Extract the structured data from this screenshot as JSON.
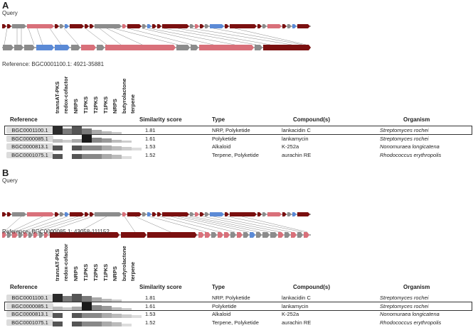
{
  "colors": {
    "dark_red": "#7b1010",
    "salmon": "#d9707a",
    "grey": "#8c8c8c",
    "blue": "#5b8ad6",
    "text": "#222222"
  },
  "panel_a": {
    "letter": "A",
    "query_label": "Query",
    "reference_line": "Reference: BGC0001100.1: 4921-35881"
  },
  "panel_b": {
    "letter": "B",
    "query_label": "Query",
    "reference_line": "Reference: BGC0000085.1: 43058-111152"
  },
  "columns": {
    "compound_classes": [
      "transAT-PKS",
      "redox-cofactor",
      "NRPS",
      "T1PKS",
      "T2PKS",
      "T1PKS",
      "NRPS",
      "butyrolactone",
      "terpene"
    ],
    "compound_classes_b": [
      "transAT-PKS",
      "redox-cofactor",
      "NRPS",
      "T1PKS",
      "T2PKS",
      "T1PKS",
      "NRPS",
      "butyrolactone",
      "terpene"
    ],
    "reference": "Reference",
    "similarity": "Similarity score",
    "type": "Type",
    "compounds": "Compound(s)",
    "organism": "Organism"
  },
  "rows": [
    {
      "reference": "BGC0001100.1",
      "similarity": "1.81",
      "type": "NRP, Polyketide",
      "compound": "lankacidin C",
      "organism": "Streptomyces rochei"
    },
    {
      "reference": "BGC0000085.1",
      "similarity": "1.61",
      "type": "Polyketide",
      "compound": "lankamycin",
      "organism": "Streptomyces rochei"
    },
    {
      "reference": "BGC0000813.1",
      "similarity": "1.53",
      "type": "Alkaloid",
      "compound": "K-252a",
      "organism": "Nonomuraea longicatena"
    },
    {
      "reference": "BGC0001075.1",
      "similarity": "1.52",
      "type": "Terpene, Polyketide",
      "compound": "aurachin RE",
      "organism": "Rhodococcus erythropolis"
    }
  ],
  "highlight_a": 0,
  "highlight_b": 1
}
